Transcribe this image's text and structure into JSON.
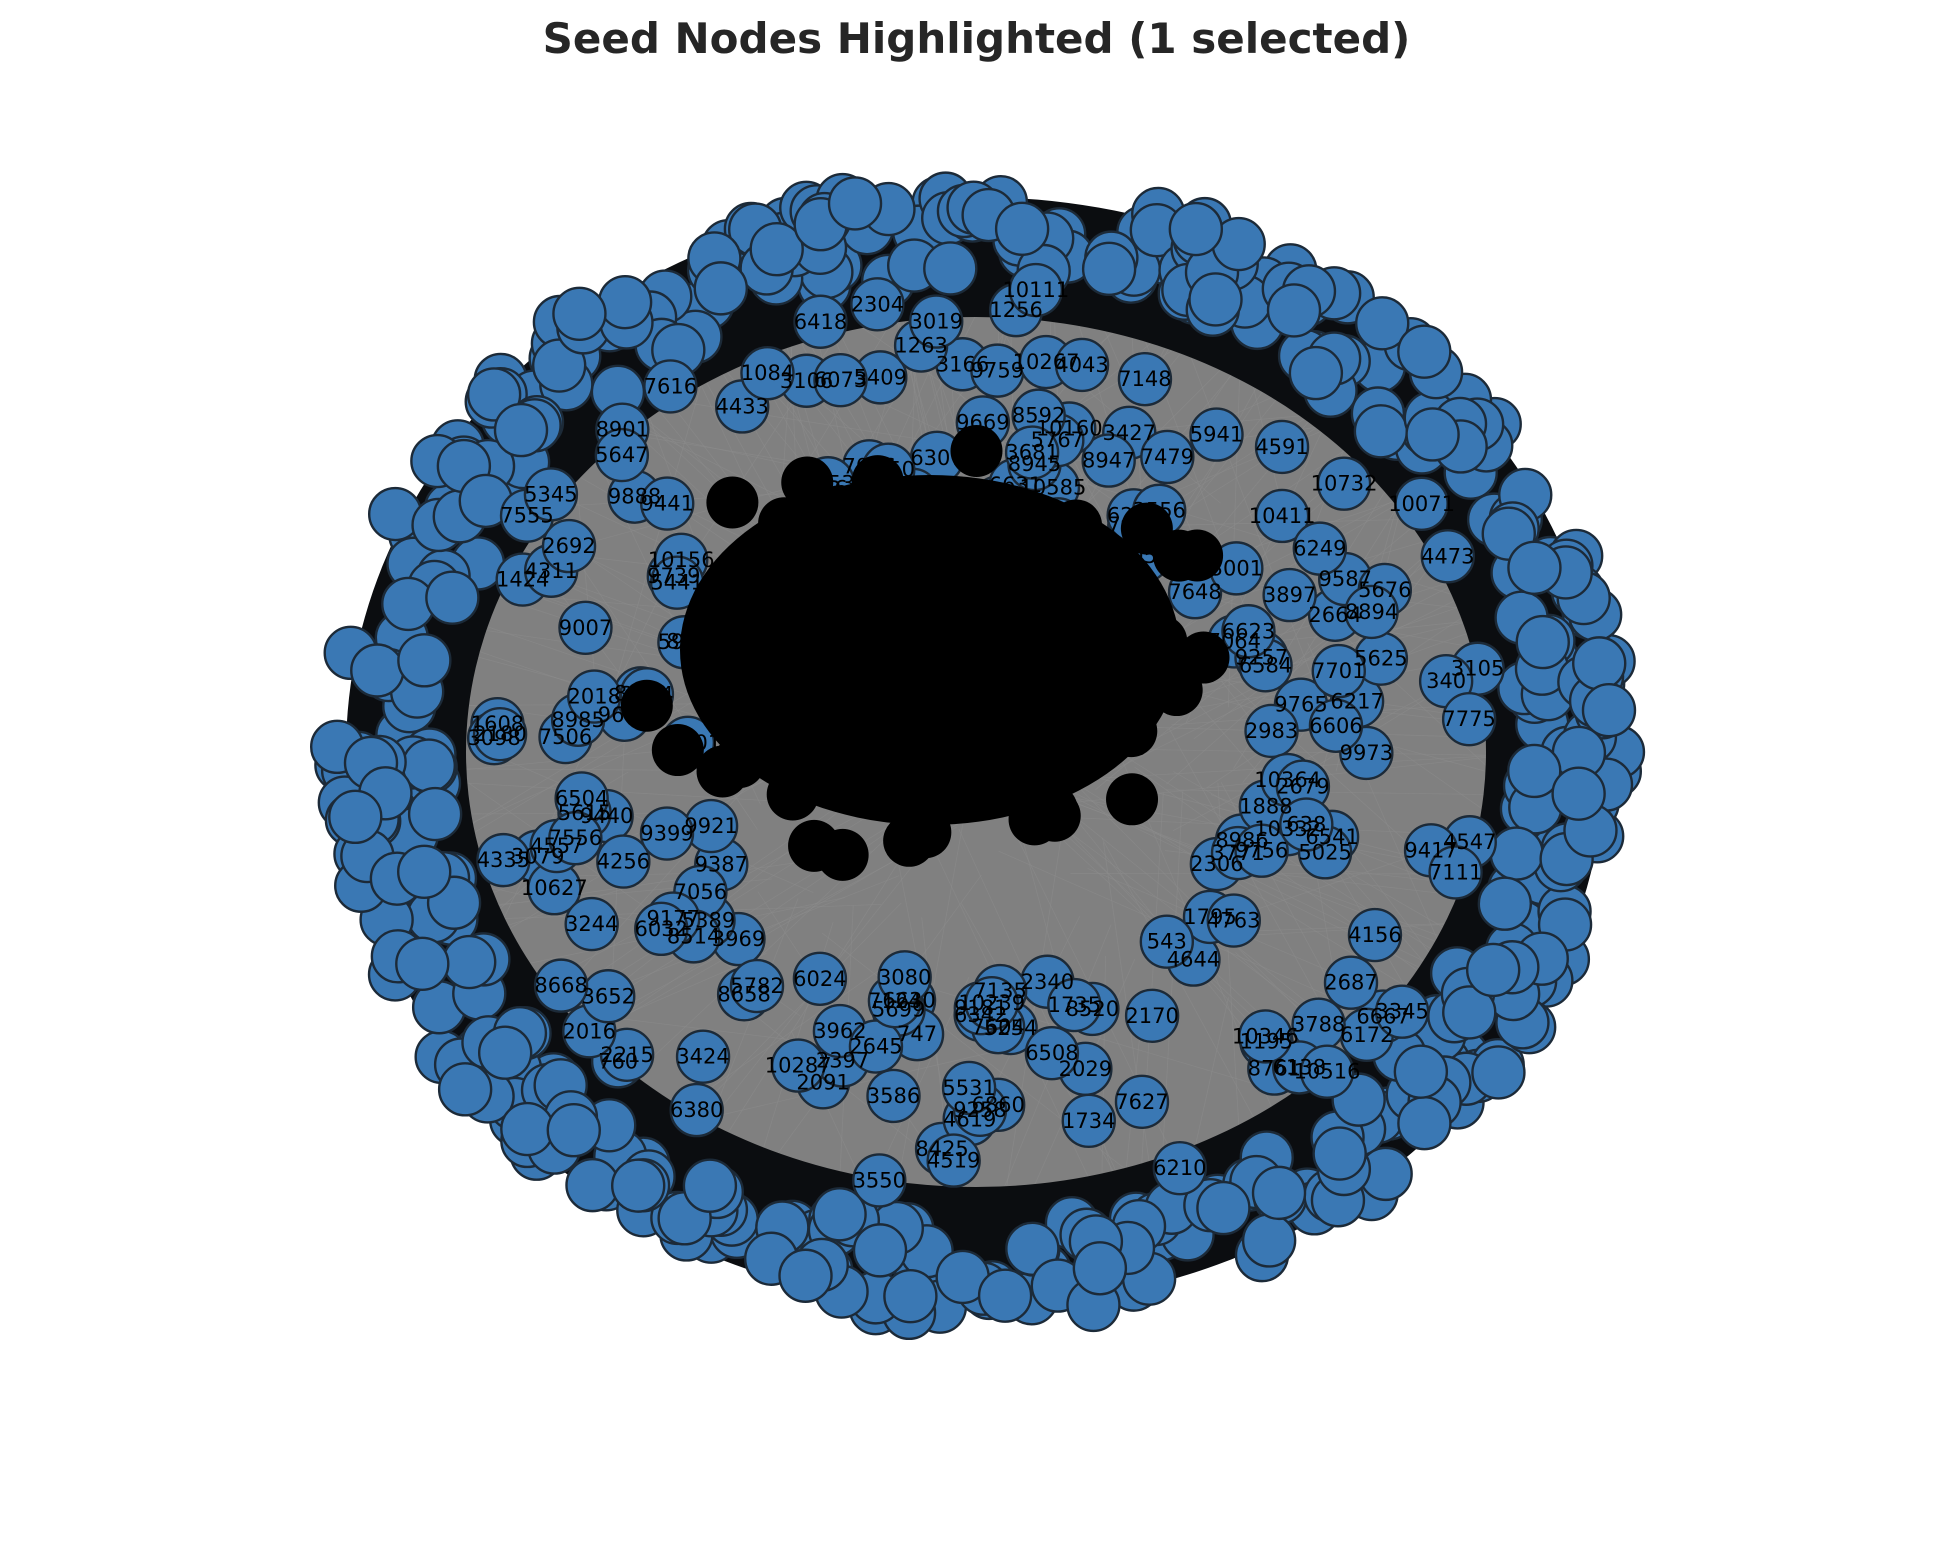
{
  "title": "Seed Nodes Highlighted (1 selected)",
  "colors": {
    "node_fill": "#3a78b4",
    "node_edge": "#1c2a38",
    "edge": "#808080",
    "label": "#000000",
    "core": "#000000"
  },
  "visible_node_labels": [
    "8986",
    "4547",
    "10332",
    "6667",
    "2306",
    "6172",
    "3788",
    "1195",
    "8761",
    "2340",
    "5254",
    "6860",
    "2029",
    "6342",
    "8425",
    "7604",
    "3586",
    "3550",
    "2091",
    "760",
    "2215",
    "8658",
    "3969",
    "9387",
    "2016",
    "3079",
    "9921",
    "10627",
    "9440",
    "1608",
    "7506",
    "9660",
    "8953",
    "9739",
    "7555",
    "5345",
    "8901",
    "9292",
    "6926",
    "3106",
    "2656",
    "5409",
    "3166",
    "1263",
    "10719",
    "6307",
    "9669",
    "3427",
    "6631",
    "10585",
    "1051",
    "8947",
    "7075",
    "10732",
    "2664",
    "7648",
    "7064",
    "9257",
    "9587",
    "9765",
    "6217",
    "6541",
    "1888",
    "9417",
    "7111",
    "3771",
    "3345",
    "6138",
    "4644",
    "1795",
    "543",
    "10346",
    "6210",
    "7135",
    "9181",
    "4619",
    "6508",
    "6630",
    "10239",
    "2397",
    "747",
    "3962",
    "6380",
    "6024",
    "5389",
    "7056",
    "3244",
    "3652",
    "8514",
    "4335",
    "10301",
    "4256",
    "8985",
    "2018",
    "3098",
    "9007",
    "1424",
    "9888",
    "4311",
    "7548",
    "5647",
    "7616",
    "6719",
    "6418",
    "6073",
    "7026",
    "10337",
    "1256",
    "10160",
    "8945",
    "9759",
    "10267",
    "5767",
    "7148",
    "6287",
    "4591",
    "3897",
    "4473",
    "10071",
    "6584",
    "3105",
    "5676",
    "9973",
    "5625",
    "2983",
    "5025",
    "10364",
    "2679",
    "4156",
    "9756",
    "10516",
    "4763",
    "2687",
    "8520",
    "2170",
    "1735",
    "1734",
    "7627",
    "9258",
    "5531",
    "5699",
    "2645",
    "4519",
    "7124",
    "3080",
    "10287",
    "5782",
    "3424",
    "9177",
    "6032",
    "9399",
    "8668",
    "4557",
    "5615",
    "6504",
    "7556",
    "3154",
    "2180",
    "8996",
    "10156",
    "2692",
    "5919",
    "4119",
    "5441",
    "9441",
    "4433",
    "1084",
    "3253",
    "6050",
    "2304",
    "8592",
    "3019",
    "3681",
    "4043",
    "10111",
    "7479",
    "1551",
    "3556",
    "5941",
    "10411",
    "6249",
    "6623",
    "3001",
    "7701",
    "6606",
    "8894",
    "340",
    "638",
    "7775"
  ]
}
